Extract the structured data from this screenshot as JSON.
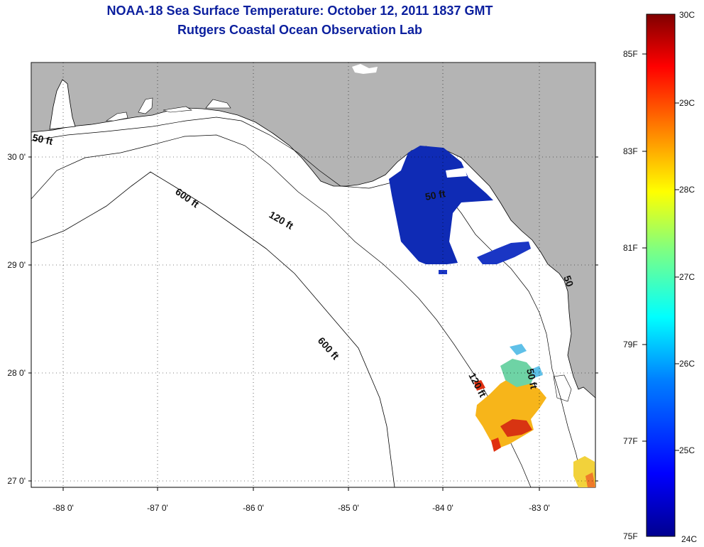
{
  "title": {
    "line1": "NOAA-18 Sea Surface Temperature:  October 12, 2011 1837 GMT",
    "line2": "Rutgers Coastal Ocean Observation Lab"
  },
  "axes": {
    "lat_ticks": [
      {
        "value": 30,
        "label": "30 0'"
      },
      {
        "value": 29,
        "label": "29 0'"
      },
      {
        "value": 28,
        "label": "28 0'"
      },
      {
        "value": 27,
        "label": "27 0'"
      }
    ],
    "lon_ticks": [
      {
        "value": -88,
        "label": "-88 0'"
      },
      {
        "value": -87,
        "label": "-87 0'"
      },
      {
        "value": -86,
        "label": "-86 0'"
      },
      {
        "value": -85,
        "label": "-85 0'"
      },
      {
        "value": -84,
        "label": "-84 0'"
      },
      {
        "value": -83,
        "label": "-83 0'"
      }
    ],
    "lon_range": [
      -88.33,
      -82.5
    ],
    "lat_range": [
      26.94,
      30.87
    ],
    "grid": "dotted"
  },
  "contours": [
    {
      "label": "50 ft"
    },
    {
      "label": "120 ft"
    },
    {
      "label": "600 ft"
    }
  ],
  "contour_labels": {
    "a": "50 ft",
    "b": "600 ft",
    "c": "120 ft",
    "d": "50 ft",
    "e": "600 ft",
    "f": "120 ft",
    "g": "50 ft",
    "h": "50"
  },
  "colorbar": {
    "celsius": [
      "30C",
      "29C",
      "28C",
      "27C",
      "26C",
      "25C",
      "24C"
    ],
    "fahrenheit": [
      "85F",
      "83F",
      "81F",
      "79F",
      "77F",
      "75F"
    ],
    "colors": [
      "#00008f",
      "#0000ff",
      "#0080ff",
      "#00ffff",
      "#80ff80",
      "#ffff00",
      "#ff8000",
      "#ff0000",
      "#800000"
    ]
  },
  "colors": {
    "land": "#b4b4b4",
    "title": "#0b1f9e",
    "sst_cold": "#0f2bb5"
  }
}
